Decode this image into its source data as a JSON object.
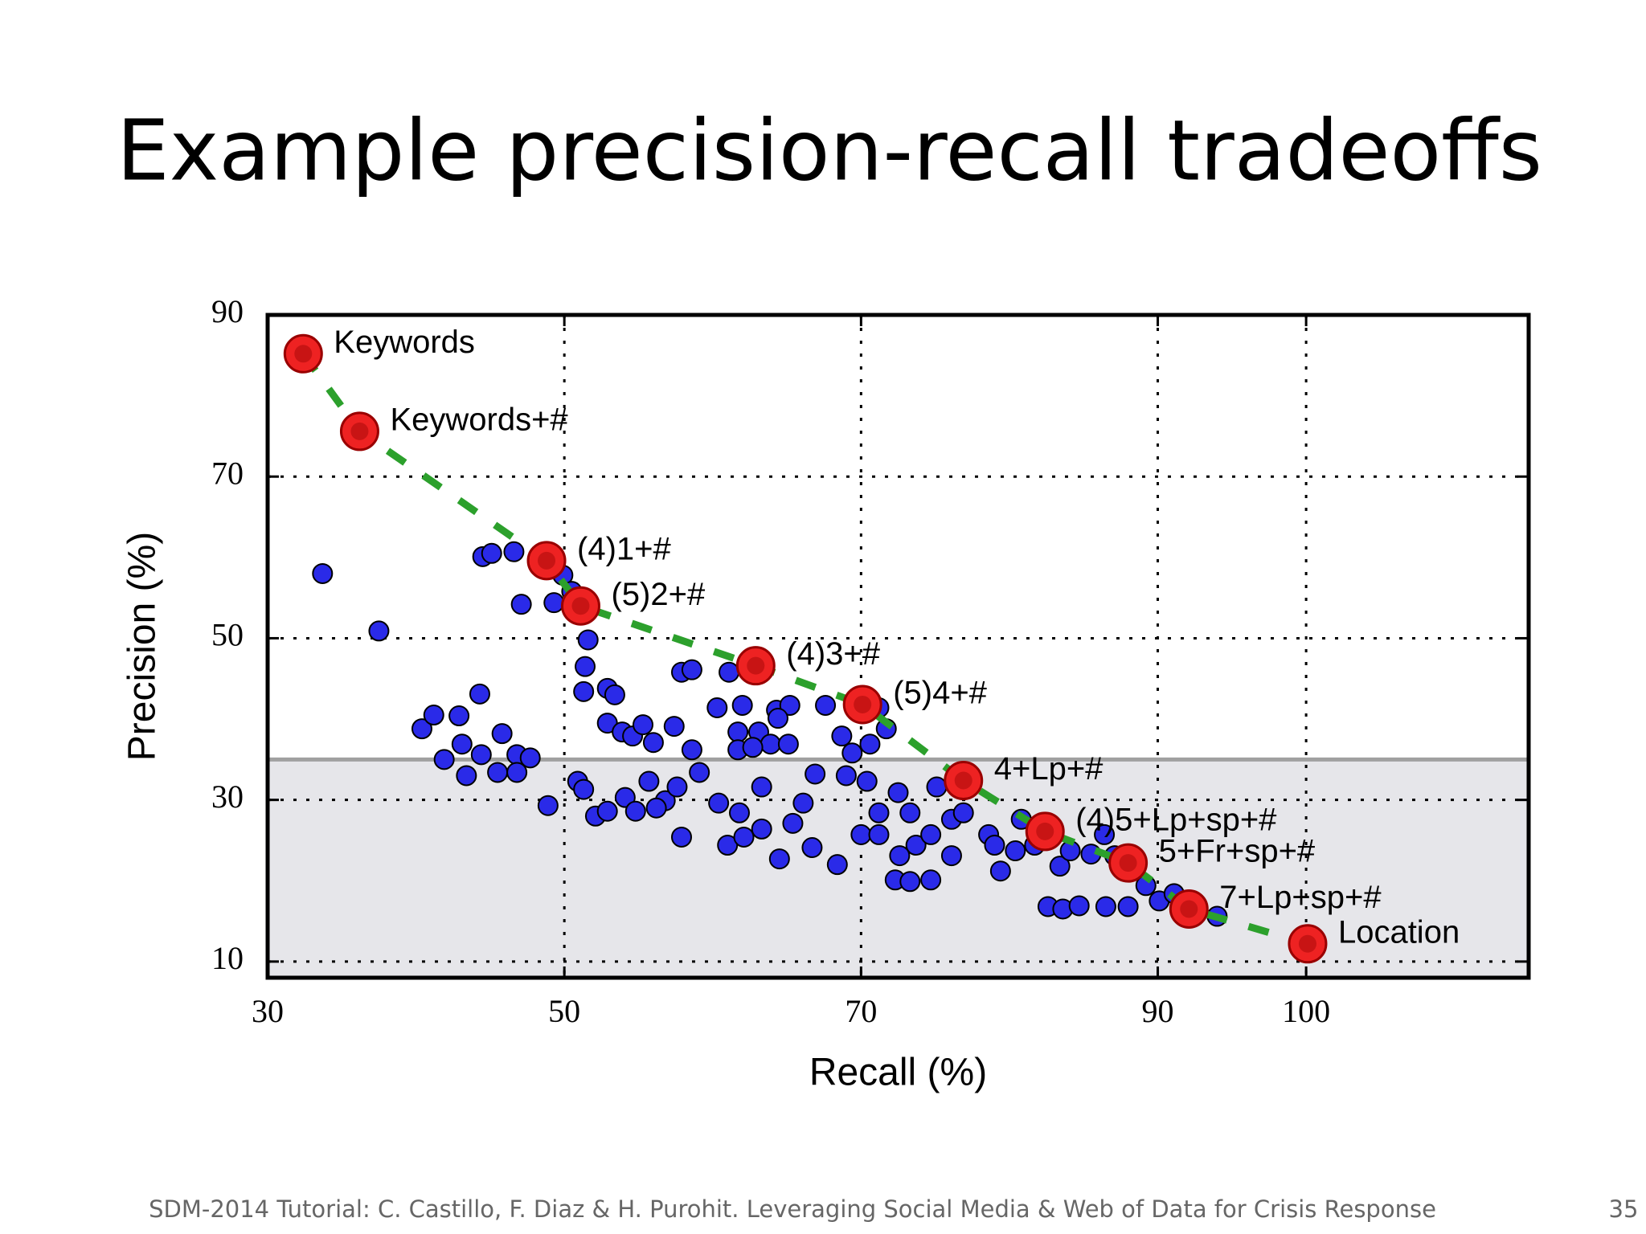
{
  "slide": {
    "title": "Example precision-recall tradeoffs",
    "footer": "SDM-2014 Tutorial: C. Castillo, F. Diaz & H. Purohit. Leveraging Social Media & Web of Data for Crisis Response",
    "page_number": "35"
  },
  "chart_data": {
    "type": "scatter",
    "x_label": "Recall (%)",
    "y_label": "Precision (%)",
    "xlim": [
      30,
      115
    ],
    "ylim": [
      8,
      90
    ],
    "xticks": [
      30,
      50,
      70,
      90,
      100
    ],
    "yticks": [
      10,
      30,
      50,
      70,
      90
    ],
    "grid": true,
    "grid_style": "dotted",
    "threshold": 35,
    "threshold_color": "#a0a0a0",
    "shade_color": "#e6e6ea",
    "series": [
      {
        "color": "#2a2ae8",
        "x": [
          33.7,
          37.5,
          40.4,
          41.2,
          42.9,
          44.3,
          43.1,
          41.9,
          43.4,
          44.4,
          45.8,
          45.5,
          46.8,
          47.7,
          46.8,
          48.9,
          44.5,
          45.1,
          46.6,
          47.1,
          49.3,
          49.9,
          50.5,
          51.6,
          51.4,
          51.3,
          52.9,
          53.4,
          52.9,
          53.9,
          54.6,
          55.3,
          56.0,
          57.4,
          57.9,
          58.6,
          58.6,
          50.9,
          51.3,
          52.1,
          52.9,
          54.1,
          54.8,
          55.7,
          56.8,
          57.9,
          59.1,
          60.3,
          61.1,
          62.0,
          61.7,
          63.1,
          64.3,
          65.2,
          64.4,
          63.9,
          65.1,
          61.7,
          62.7,
          61.0,
          62.1,
          63.3,
          64.5,
          65.4,
          66.7,
          67.6,
          68.7,
          69.4,
          70.6,
          71.7,
          71.2,
          69.0,
          70.4,
          66.9,
          68.4,
          70.0,
          71.2,
          72.5,
          72.3,
          73.3,
          74.7,
          73.7,
          74.7,
          76.1,
          75.1,
          78.6,
          79.0,
          79.4,
          80.8,
          81.7,
          83.4,
          84.1,
          85.5,
          82.6,
          83.6,
          84.7,
          86.5,
          88.0,
          89.2,
          90.1,
          91.1,
          94.0,
          87.1,
          86.4,
          80.4,
          76.1,
          72.6,
          66.1,
          63.3,
          60.4,
          57.6,
          56.2,
          61.8,
          73.3,
          76.9,
          71.2
        ],
        "values": [
          58.0,
          50.9,
          38.8,
          40.5,
          40.4,
          43.1,
          36.9,
          35.0,
          33.0,
          35.6,
          38.2,
          33.4,
          35.6,
          35.2,
          33.4,
          29.3,
          60.1,
          60.5,
          60.7,
          54.2,
          54.4,
          57.8,
          55.8,
          49.8,
          46.5,
          43.4,
          43.8,
          43.0,
          39.5,
          38.4,
          37.9,
          39.3,
          37.1,
          39.1,
          45.8,
          46.1,
          36.2,
          32.3,
          31.3,
          28.0,
          28.6,
          30.3,
          28.6,
          32.3,
          29.9,
          25.4,
          33.4,
          41.4,
          45.8,
          41.7,
          38.4,
          38.4,
          41.1,
          41.7,
          40.1,
          36.9,
          36.9,
          36.2,
          36.5,
          24.4,
          25.4,
          26.4,
          22.7,
          27.1,
          24.1,
          41.7,
          37.9,
          35.8,
          36.9,
          38.8,
          41.4,
          33.0,
          32.3,
          33.2,
          22.0,
          25.7,
          28.4,
          30.9,
          20.1,
          19.9,
          20.1,
          24.4,
          25.7,
          27.6,
          31.6,
          25.7,
          24.4,
          21.2,
          27.6,
          24.4,
          21.8,
          23.7,
          23.3,
          16.8,
          16.5,
          16.9,
          16.8,
          16.8,
          19.4,
          17.5,
          18.4,
          15.6,
          23.1,
          25.7,
          23.7,
          23.1,
          23.1,
          29.6,
          31.6,
          29.6,
          31.6,
          29.0,
          28.4,
          28.4,
          28.4,
          25.7
        ]
      },
      {
        "color": "#ee2222",
        "line_color": "#2ca02c",
        "line_style": "dashed",
        "x": [
          32.4,
          36.2,
          48.8,
          51.1,
          62.9,
          70.1,
          76.9,
          82.4,
          88.0,
          92.1,
          100.1
        ],
        "values": [
          85.2,
          75.6,
          59.6,
          54.0,
          46.6,
          41.8,
          32.4,
          26.1,
          22.2,
          16.5,
          12.2
        ],
        "labels": [
          "Keywords",
          "Keywords+#",
          "(4)1+#",
          "(5)2+#",
          "(4)3+#",
          "(5)4+#",
          "4+Lp+#",
          "(4)5+Lp+sp+#",
          "5+Fr+sp+#",
          "7+Lp+sp+#",
          "Location"
        ]
      }
    ]
  }
}
